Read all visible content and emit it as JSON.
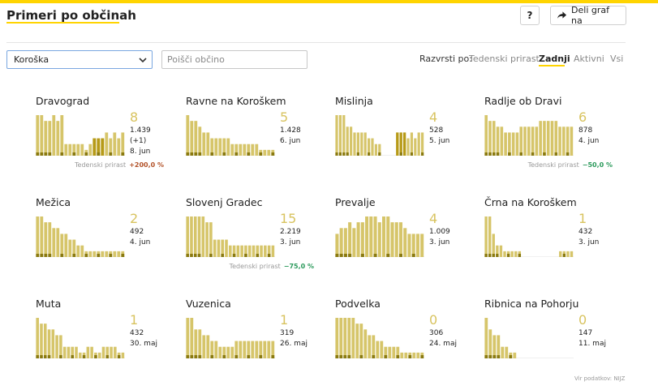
{
  "header": {
    "title": "Primeri po občinah",
    "help_label": "?",
    "share_label": "Deli graf na"
  },
  "filters": {
    "region_value": "Koroška",
    "search_placeholder": "Poišči občino"
  },
  "sort": {
    "label": "Razvrsti po:",
    "options": [
      "Tedenski prirast",
      "Zadnji",
      "Aktivni",
      "Vsi"
    ],
    "active": "Zadnji"
  },
  "colors": {
    "accent": "#ffd400",
    "bar": "#d6c56a",
    "bar_dark": "#8a7a10",
    "bar_highlight": "#b69a18",
    "positive": "#b3532a",
    "negative": "#2c9a5c",
    "big_number": "#d8c35f"
  },
  "cards": [
    {
      "name": "Dravograd",
      "big": "8",
      "line1": "1.439",
      "line2": "(+1)",
      "line3": "8. jun",
      "trend_label": "Tedenski prirast",
      "trend_value": "+200,0 %",
      "trend_sign": "positive",
      "chart_data": {
        "type": "bar",
        "values": [
          7,
          7,
          6,
          6,
          7,
          6,
          7,
          2,
          2,
          2,
          2,
          2,
          1,
          2,
          3,
          2,
          3,
          4,
          3,
          4,
          3,
          4
        ],
        "highlight": [
          0,
          0,
          0,
          0,
          0,
          0,
          0,
          0,
          0,
          0,
          0,
          0,
          0,
          0,
          3,
          3,
          3,
          0,
          0,
          0,
          0,
          0
        ]
      }
    },
    {
      "name": "Ravne na Koroškem",
      "big": "5",
      "line1": "1.428",
      "line2": "6. jun",
      "line3": "",
      "trend_label": "",
      "trend_value": "",
      "trend_sign": "",
      "chart_data": {
        "type": "bar",
        "values": [
          7,
          6,
          6,
          5,
          4,
          4,
          3,
          3,
          3,
          3,
          3,
          2,
          2,
          2,
          2,
          2,
          2,
          2,
          1,
          1,
          1,
          1
        ],
        "highlight": []
      }
    },
    {
      "name": "Mislinja",
      "big": "4",
      "line1": "528",
      "line2": "5. jun",
      "line3": "",
      "trend_label": "",
      "trend_value": "",
      "trend_sign": "",
      "chart_data": {
        "type": "bar",
        "values": [
          7,
          7,
          7,
          5,
          5,
          4,
          4,
          4,
          4,
          3,
          3,
          2,
          2,
          0,
          0,
          0,
          0,
          4,
          4,
          4,
          3,
          4,
          3,
          4,
          4
        ],
        "highlight": [
          0,
          0,
          0,
          0,
          0,
          0,
          0,
          0,
          0,
          0,
          0,
          0,
          0,
          0,
          0,
          0,
          0,
          4,
          4,
          4,
          0,
          0,
          0,
          0,
          0
        ]
      }
    },
    {
      "name": "Radlje ob Dravi",
      "big": "6",
      "line1": "878",
      "line2": "4. jun",
      "line3": "",
      "trend_label": "Tedenski prirast",
      "trend_value": "−50,0 %",
      "trend_sign": "negative",
      "chart_data": {
        "type": "bar",
        "values": [
          7,
          6,
          6,
          5,
          5,
          4,
          4,
          4,
          4,
          5,
          5,
          5,
          5,
          5,
          6,
          6,
          6,
          6,
          6,
          5,
          5,
          5,
          5
        ],
        "highlight": []
      }
    },
    {
      "name": "Mežica",
      "big": "2",
      "line1": "492",
      "line2": "4. jun",
      "line3": "",
      "trend_label": "",
      "trend_value": "",
      "trend_sign": "",
      "chart_data": {
        "type": "bar",
        "values": [
          7,
          7,
          6,
          6,
          5,
          5,
          4,
          4,
          3,
          3,
          2,
          2,
          1,
          1,
          1,
          1,
          1,
          1,
          1,
          1,
          1,
          1
        ],
        "highlight": []
      }
    },
    {
      "name": "Slovenj Gradec",
      "big": "15",
      "line1": "2.219",
      "line2": "3. jun",
      "line3": "",
      "trend_label": "Tedenski prirast",
      "trend_value": "−75,0 %",
      "trend_sign": "negative",
      "chart_data": {
        "type": "bar",
        "values": [
          7,
          7,
          7,
          7,
          7,
          6,
          6,
          3,
          3,
          3,
          3,
          2,
          2,
          2,
          2,
          2,
          2,
          2,
          2,
          2,
          2,
          2,
          2
        ],
        "highlight": []
      }
    },
    {
      "name": "Prevalje",
      "big": "4",
      "line1": "1.009",
      "line2": "3. jun",
      "line3": "",
      "trend_label": "",
      "trend_value": "",
      "trend_sign": "",
      "chart_data": {
        "type": "bar",
        "values": [
          4,
          5,
          5,
          6,
          5,
          6,
          6,
          7,
          7,
          7,
          6,
          7,
          7,
          6,
          6,
          6,
          5,
          4,
          4,
          4,
          4
        ],
        "highlight": []
      }
    },
    {
      "name": "Črna na Koroškem",
      "big": "1",
      "line1": "432",
      "line2": "3. jun",
      "line3": "",
      "trend_label": "",
      "trend_value": "",
      "trend_sign": "",
      "chart_data": {
        "type": "bar",
        "values": [
          7,
          7,
          4,
          2,
          2,
          1,
          1,
          1,
          1,
          1,
          0,
          0,
          0,
          0,
          0,
          0,
          0,
          0,
          0,
          0,
          1,
          1,
          1,
          1
        ],
        "highlight": []
      }
    },
    {
      "name": "Muta",
      "big": "1",
      "line1": "432",
      "line2": "30. maj",
      "line3": "",
      "trend_label": "",
      "trend_value": "",
      "trend_sign": "",
      "chart_data": {
        "type": "bar",
        "values": [
          7,
          6,
          6,
          5,
          5,
          4,
          4,
          2,
          2,
          2,
          2,
          1,
          1,
          2,
          2,
          1,
          1,
          2,
          2,
          2,
          2,
          1,
          1
        ],
        "highlight": []
      }
    },
    {
      "name": "Vuzenica",
      "big": "1",
      "line1": "319",
      "line2": "26. maj",
      "line3": "",
      "trend_label": "",
      "trend_value": "",
      "trend_sign": "",
      "chart_data": {
        "type": "bar",
        "values": [
          7,
          7,
          5,
          5,
          4,
          4,
          3,
          3,
          2,
          2,
          2,
          2,
          3,
          3,
          3,
          3,
          3,
          3,
          3,
          3,
          3,
          3
        ],
        "highlight": []
      }
    },
    {
      "name": "Podvelka",
      "big": "0",
      "line1": "306",
      "line2": "24. maj",
      "line3": "",
      "trend_label": "",
      "trend_value": "",
      "trend_sign": "",
      "chart_data": {
        "type": "bar",
        "values": [
          7,
          7,
          7,
          7,
          7,
          6,
          6,
          5,
          4,
          4,
          3,
          3,
          2,
          2,
          2,
          2,
          1,
          1,
          1,
          1,
          1,
          1
        ],
        "highlight": []
      }
    },
    {
      "name": "Ribnica na Pohorju",
      "big": "0",
      "line1": "147",
      "line2": "11. maj",
      "line3": "",
      "trend_label": "",
      "trend_value": "",
      "trend_sign": "",
      "chart_data": {
        "type": "bar",
        "values": [
          7,
          5,
          4,
          4,
          2,
          2,
          1,
          1,
          0,
          0,
          0,
          0,
          0,
          0,
          0,
          0,
          0,
          0,
          0,
          0,
          0,
          0
        ],
        "highlight": []
      }
    }
  ],
  "footer": {
    "source_label": "Vir podatkov: NIJZ"
  }
}
